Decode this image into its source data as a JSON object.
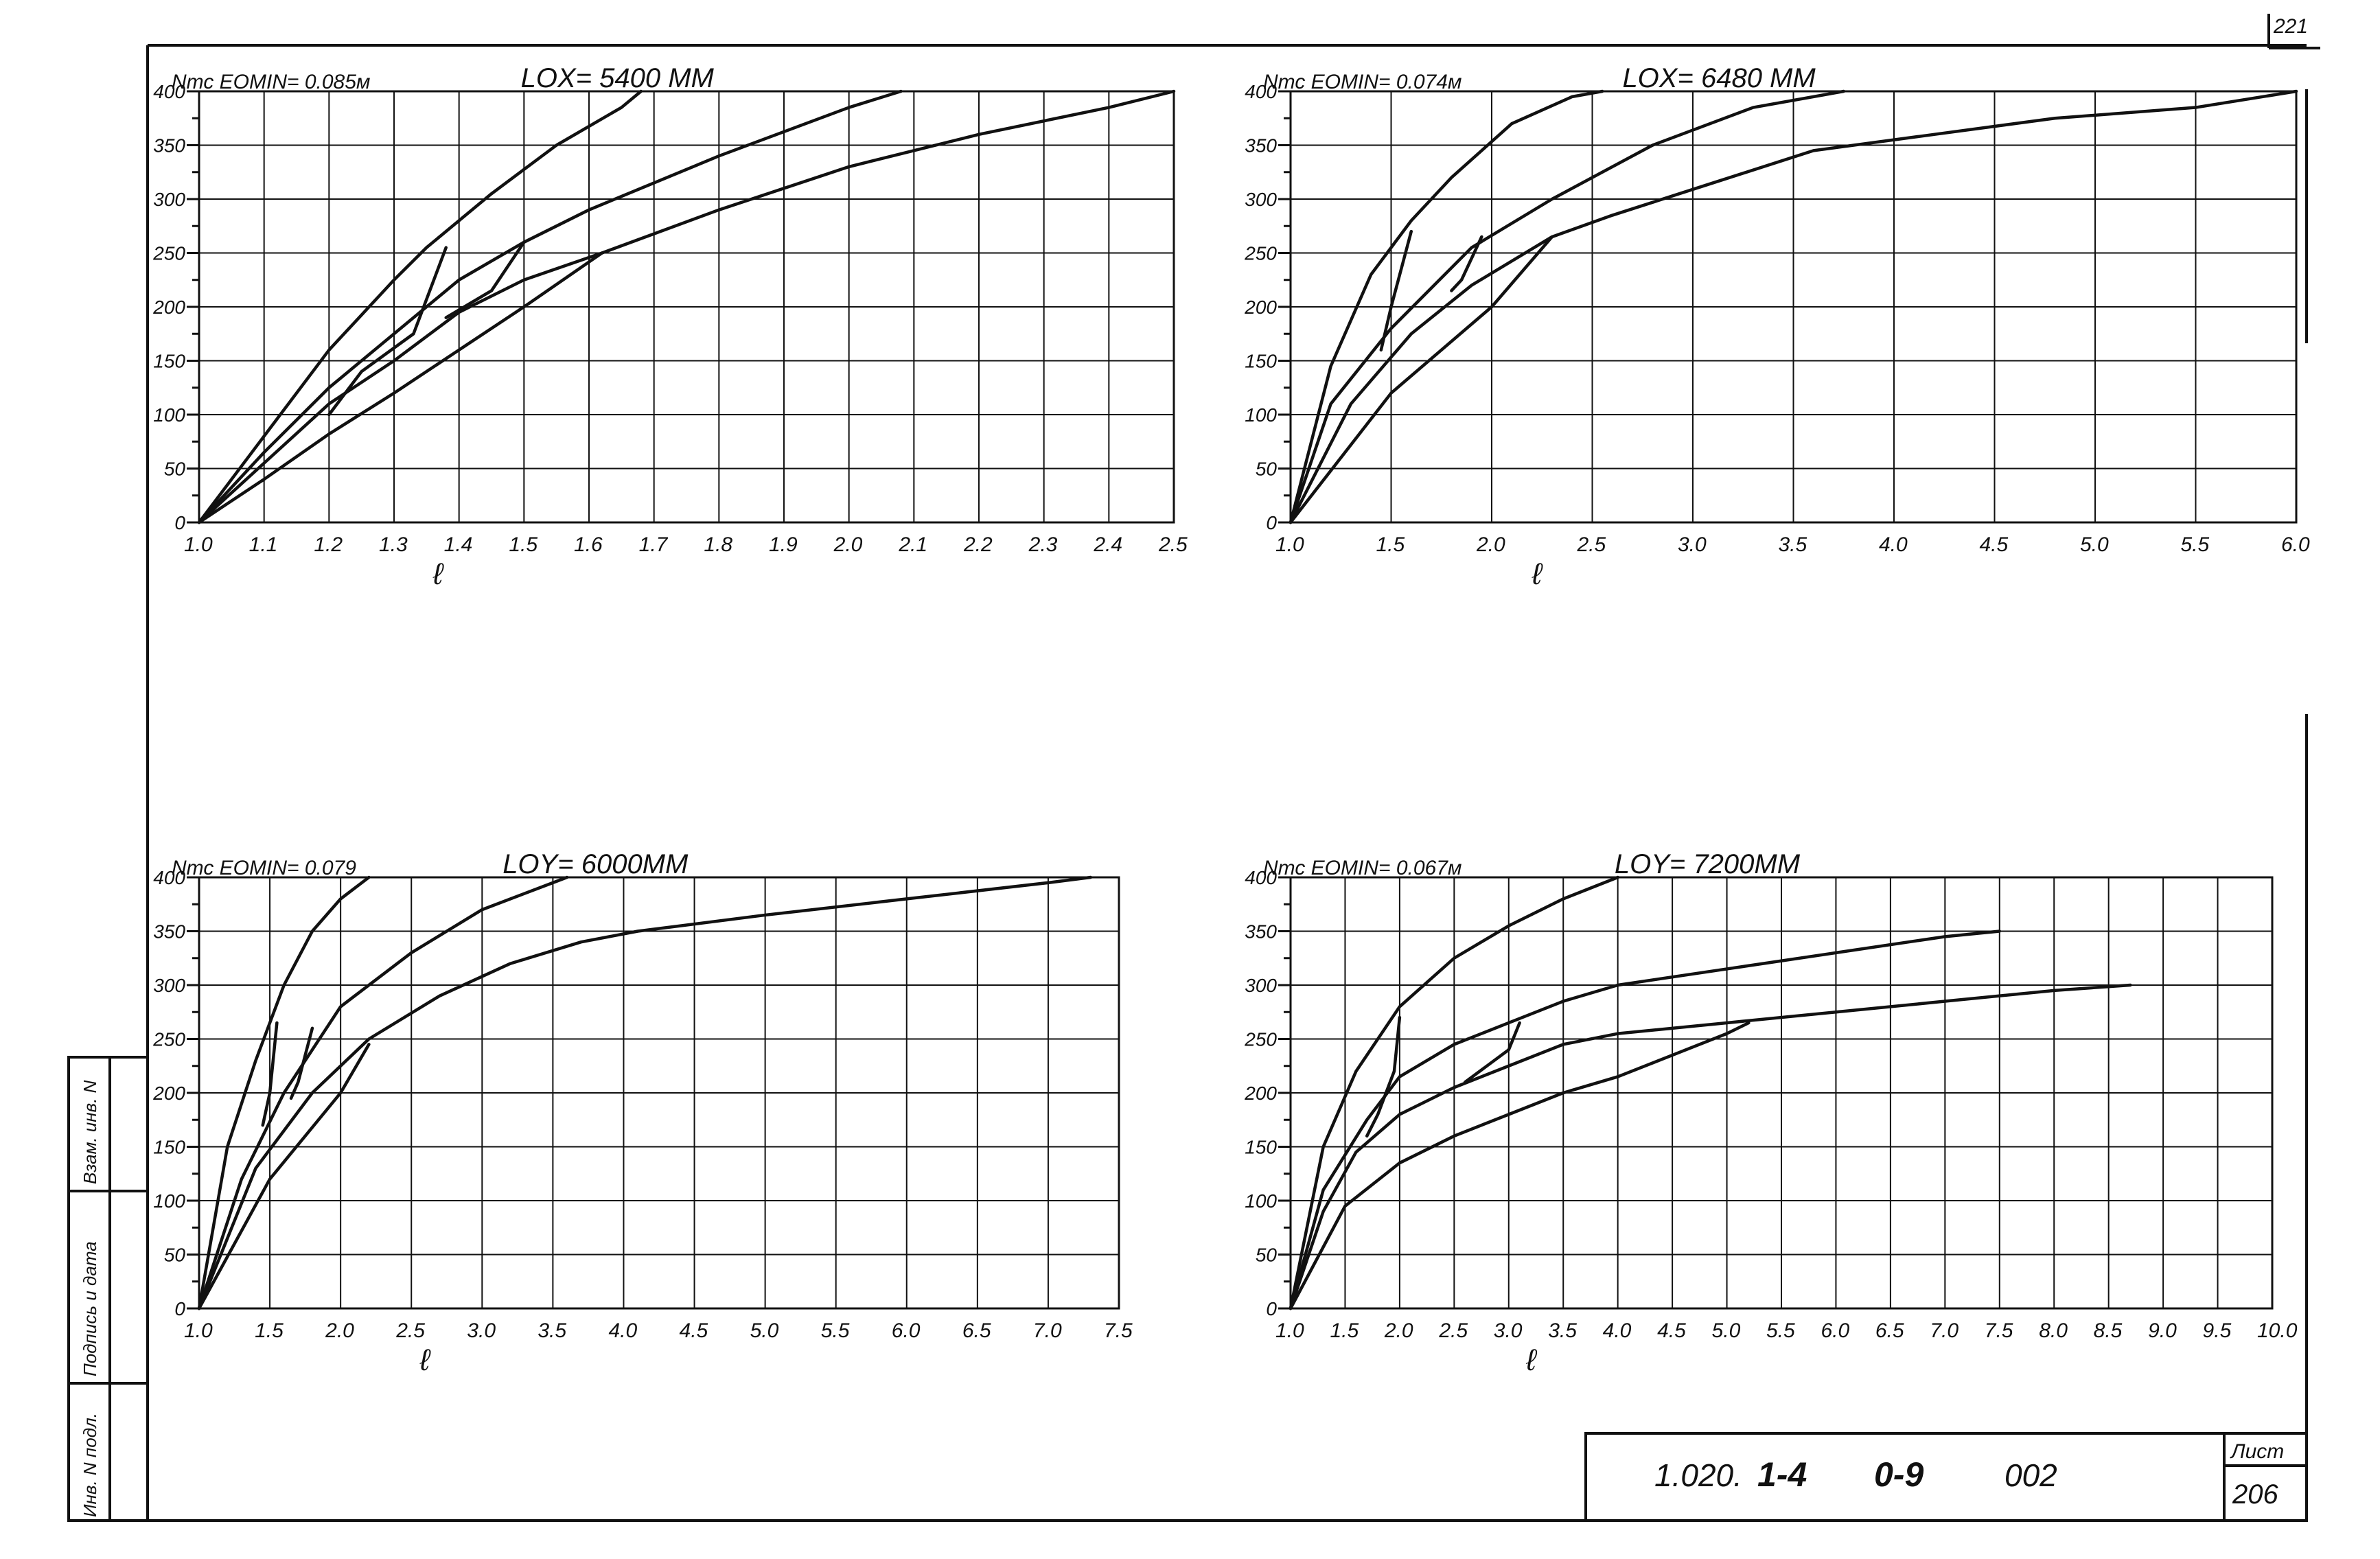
{
  "sheet": {
    "page_number": "221",
    "title_block": {
      "designation_parts": [
        "1.020.",
        "1-4",
        "0-9",
        "002"
      ],
      "sheet_label": "Лист",
      "sheet_number": "206"
    },
    "side_stamp": {
      "fields": [
        "Инв. N подл.",
        "Подпись и дата",
        "Взам. инв. N"
      ]
    }
  },
  "chart_data": [
    {
      "type": "line",
      "note": "Nтс EOMIN= 0.085м",
      "title": "LOX= 5400 ММ",
      "ylabel": "Nтс",
      "xlabel": "ℓ",
      "xlim": [
        1.0,
        2.5
      ],
      "ylim": [
        0,
        400
      ],
      "x_ticks": [
        "1.0",
        "1.1",
        "1.2",
        "1.3",
        "1.4",
        "1.5",
        "1.6",
        "1.7",
        "1.8",
        "1.9",
        "2.0",
        "2.1",
        "2.2",
        "2.3",
        "2.4",
        "2.5"
      ],
      "y_ticks": [
        "0",
        "50",
        "100",
        "150",
        "200",
        "250",
        "300",
        "350",
        "400"
      ],
      "series": [
        {
          "x": [
            1.0,
            1.1,
            1.2,
            1.3,
            1.35,
            1.45,
            1.55,
            1.65,
            1.68
          ],
          "y": [
            0,
            80,
            160,
            225,
            255,
            305,
            350,
            385,
            400
          ]
        },
        {
          "x": [
            1.0,
            1.1,
            1.2,
            1.3,
            1.4,
            1.5,
            1.6,
            1.8,
            2.0,
            2.08
          ],
          "y": [
            0,
            65,
            125,
            175,
            225,
            260,
            290,
            340,
            385,
            400
          ]
        },
        {
          "x": [
            1.0,
            1.1,
            1.2,
            1.3,
            1.4,
            1.5,
            1.62,
            1.8,
            2.0,
            2.2,
            2.4,
            2.5
          ],
          "y": [
            0,
            55,
            110,
            150,
            195,
            225,
            250,
            290,
            330,
            360,
            385,
            400
          ]
        },
        {
          "x": [
            1.0,
            1.1,
            1.2,
            1.3,
            1.4,
            1.5,
            1.62
          ],
          "y": [
            0,
            40,
            82,
            120,
            160,
            200,
            250
          ]
        },
        {
          "x": [
            1.38,
            1.33,
            1.25,
            1.2
          ],
          "y": [
            255,
            175,
            140,
            100
          ]
        },
        {
          "x": [
            1.5,
            1.45,
            1.38
          ],
          "y": [
            260,
            215,
            190
          ]
        }
      ]
    },
    {
      "type": "line",
      "note": "Nтс EOMIN= 0.074м",
      "title": "LOX= 6480 ММ",
      "ylabel": "Nтс",
      "xlabel": "ℓ",
      "xlim": [
        1.0,
        6.0
      ],
      "ylim": [
        0,
        400
      ],
      "x_ticks": [
        "1.0",
        "1.5",
        "2.0",
        "2.5",
        "3.0",
        "3.5",
        "4.0",
        "4.5",
        "5.0",
        "5.5",
        "6.0"
      ],
      "y_ticks": [
        "0",
        "50",
        "100",
        "150",
        "200",
        "250",
        "300",
        "350",
        "400"
      ],
      "series": [
        {
          "x": [
            1.0,
            1.2,
            1.4,
            1.6,
            1.8,
            2.1,
            2.4,
            2.55
          ],
          "y": [
            0,
            145,
            230,
            280,
            320,
            370,
            395,
            400
          ]
        },
        {
          "x": [
            1.0,
            1.2,
            1.5,
            1.9,
            2.3,
            2.8,
            3.3,
            3.75
          ],
          "y": [
            0,
            110,
            180,
            255,
            300,
            350,
            385,
            400
          ]
        },
        {
          "x": [
            1.0,
            1.3,
            1.6,
            1.9,
            2.3,
            2.6,
            3.1,
            3.6,
            4.2,
            4.8,
            5.5,
            6.0
          ],
          "y": [
            0,
            110,
            175,
            220,
            265,
            285,
            315,
            345,
            360,
            375,
            385,
            400
          ]
        },
        {
          "x": [
            1.0,
            1.5,
            2.0,
            2.3
          ],
          "y": [
            0,
            120,
            200,
            265
          ]
        },
        {
          "x": [
            1.6,
            1.5,
            1.45
          ],
          "y": [
            270,
            200,
            160
          ]
        },
        {
          "x": [
            1.95,
            1.85,
            1.8
          ],
          "y": [
            265,
            225,
            215
          ]
        }
      ]
    },
    {
      "type": "line",
      "note": "Nтс EOMIN= 0.079",
      "title": "LOY= 6000ММ",
      "ylabel": "Nтс",
      "xlabel": "ℓ",
      "xlim": [
        1.0,
        7.5
      ],
      "ylim": [
        0,
        400
      ],
      "x_ticks": [
        "1.0",
        "1.5",
        "2.0",
        "2.5",
        "3.0",
        "3.5",
        "4.0",
        "4.5",
        "5.0",
        "5.5",
        "6.0",
        "6.5",
        "7.0",
        "7.5"
      ],
      "y_ticks": [
        "0",
        "50",
        "100",
        "150",
        "200",
        "250",
        "300",
        "350",
        "400"
      ],
      "series": [
        {
          "x": [
            1.0,
            1.2,
            1.4,
            1.6,
            1.8,
            2.0,
            2.2
          ],
          "y": [
            0,
            150,
            230,
            300,
            350,
            380,
            400
          ]
        },
        {
          "x": [
            1.0,
            1.3,
            1.6,
            2.0,
            2.5,
            3.0,
            3.5,
            3.6
          ],
          "y": [
            0,
            120,
            200,
            280,
            330,
            370,
            395,
            400
          ]
        },
        {
          "x": [
            1.0,
            1.4,
            1.8,
            2.2,
            2.7,
            3.2,
            3.7,
            4.1,
            5.0,
            6.0,
            7.0,
            7.3
          ],
          "y": [
            0,
            130,
            200,
            250,
            290,
            320,
            340,
            350,
            365,
            380,
            395,
            400
          ]
        },
        {
          "x": [
            1.0,
            1.5,
            2.0,
            2.2
          ],
          "y": [
            0,
            120,
            200,
            245
          ]
        },
        {
          "x": [
            1.55,
            1.5,
            1.45
          ],
          "y": [
            265,
            200,
            170
          ]
        },
        {
          "x": [
            1.8,
            1.7,
            1.65
          ],
          "y": [
            260,
            210,
            195
          ]
        }
      ]
    },
    {
      "type": "line",
      "note": "Nтс EOMIN= 0.067м",
      "title": "LOY= 7200ММ",
      "ylabel": "Nтс",
      "xlabel": "ℓ",
      "xlim": [
        1.0,
        10.0
      ],
      "ylim": [
        0,
        400
      ],
      "x_ticks": [
        "1.0",
        "1.5",
        "2.0",
        "2.5",
        "3.0",
        "3.5",
        "4.0",
        "4.5",
        "5.0",
        "5.5",
        "6.0",
        "6.5",
        "7.0",
        "7.5",
        "8.0",
        "8.5",
        "9.0",
        "9.5",
        "10.0"
      ],
      "y_ticks": [
        "0",
        "50",
        "100",
        "150",
        "200",
        "250",
        "300",
        "350",
        "400"
      ],
      "series": [
        {
          "x": [
            1.0,
            1.3,
            1.6,
            2.0,
            2.5,
            3.0,
            3.5,
            4.0
          ],
          "y": [
            0,
            150,
            220,
            280,
            325,
            355,
            380,
            400
          ]
        },
        {
          "x": [
            1.0,
            1.3,
            1.7,
            2.0,
            2.5,
            3.0,
            3.5,
            4.0,
            5.0,
            6.0,
            7.0,
            7.5
          ],
          "y": [
            0,
            110,
            175,
            215,
            245,
            265,
            285,
            300,
            315,
            330,
            345,
            350
          ]
        },
        {
          "x": [
            1.0,
            1.3,
            1.6,
            2.0,
            2.5,
            3.0,
            3.5,
            4.0,
            5.0,
            6.0,
            7.0,
            8.0,
            8.7
          ],
          "y": [
            0,
            90,
            145,
            180,
            205,
            225,
            245,
            255,
            265,
            275,
            285,
            295,
            300
          ]
        },
        {
          "x": [
            1.0,
            1.5,
            2.0,
            2.5,
            3.0,
            3.5,
            4.0,
            4.5,
            5.0,
            5.2
          ],
          "y": [
            0,
            95,
            135,
            160,
            180,
            200,
            215,
            235,
            255,
            265
          ]
        },
        {
          "x": [
            2.0,
            1.95,
            1.8,
            1.7
          ],
          "y": [
            270,
            220,
            180,
            160
          ]
        },
        {
          "x": [
            3.1,
            3.0,
            2.8,
            2.6
          ],
          "y": [
            265,
            240,
            225,
            210
          ]
        }
      ]
    }
  ]
}
